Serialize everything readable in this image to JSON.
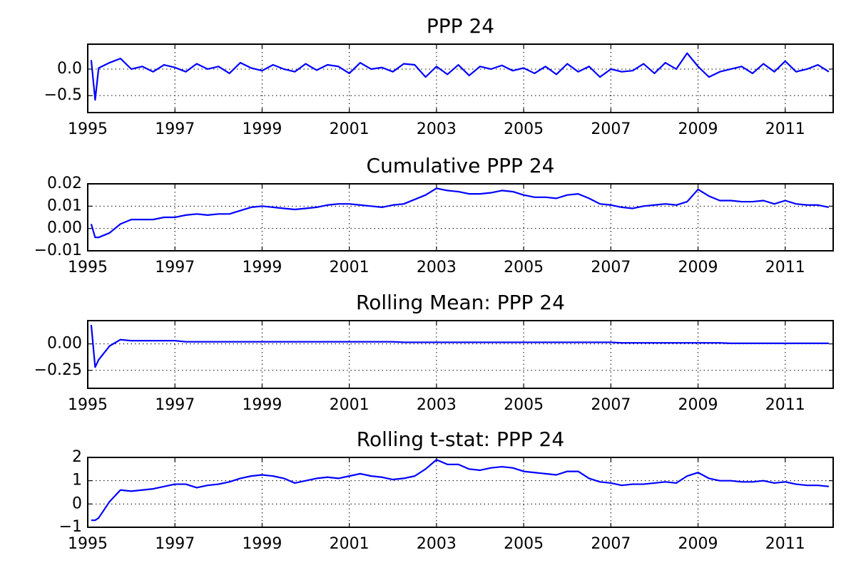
{
  "chart_data": [
    {
      "type": "line",
      "title": "PPP 24",
      "x": [
        1995.08,
        1995.17,
        1995.25,
        1995.5,
        1995.75,
        1996.0,
        1996.25,
        1996.5,
        1996.75,
        1997.0,
        1997.25,
        1997.5,
        1997.75,
        1998.0,
        1998.25,
        1998.5,
        1998.75,
        1999.0,
        1999.25,
        1999.5,
        1999.75,
        2000.0,
        2000.25,
        2000.5,
        2000.75,
        2001.0,
        2001.25,
        2001.5,
        2001.75,
        2002.0,
        2002.25,
        2002.5,
        2002.75,
        2003.0,
        2003.25,
        2003.5,
        2003.75,
        2004.0,
        2004.25,
        2004.5,
        2004.75,
        2005.0,
        2005.25,
        2005.5,
        2005.75,
        2006.0,
        2006.25,
        2006.5,
        2006.75,
        2007.0,
        2007.25,
        2007.5,
        2007.75,
        2008.0,
        2008.25,
        2008.5,
        2008.75,
        2009.0,
        2009.25,
        2009.5,
        2009.75,
        2010.0,
        2010.25,
        2010.5,
        2010.75,
        2011.0,
        2011.25,
        2011.5,
        2011.75,
        2012.0
      ],
      "series": [
        {
          "color": "#0000ff",
          "values": [
            0.17,
            -0.58,
            0.02,
            0.12,
            0.2,
            0.0,
            0.05,
            -0.05,
            0.08,
            0.03,
            -0.05,
            0.1,
            0.0,
            0.05,
            -0.08,
            0.12,
            0.02,
            -0.03,
            0.08,
            0.0,
            -0.05,
            0.1,
            -0.02,
            0.08,
            0.05,
            -0.08,
            0.12,
            0.0,
            0.03,
            -0.05,
            0.1,
            0.08,
            -0.15,
            0.05,
            -0.1,
            0.08,
            -0.12,
            0.05,
            0.0,
            0.07,
            -0.03,
            0.02,
            -0.08,
            0.05,
            -0.1,
            0.1,
            -0.05,
            0.05,
            -0.15,
            0.0,
            -0.05,
            -0.03,
            0.1,
            -0.08,
            0.12,
            0.0,
            0.3,
            0.05,
            -0.15,
            -0.05,
            0.0,
            0.05,
            -0.08,
            0.1,
            -0.05,
            0.15,
            -0.05,
            0.0,
            0.08,
            -0.05
          ]
        }
      ],
      "xlim": [
        1995,
        2012.1
      ],
      "xticks": [
        1995,
        1997,
        1999,
        2001,
        2003,
        2005,
        2007,
        2009,
        2011
      ],
      "ylim": [
        -0.82,
        0.47
      ],
      "yticks": [
        {
          "value": -0.5,
          "label": "−0.5"
        },
        {
          "value": 0,
          "label": "0.0"
        }
      ],
      "grid": true
    },
    {
      "type": "line",
      "title": "Cumulative PPP 24",
      "x": [
        1995.08,
        1995.17,
        1995.25,
        1995.5,
        1995.75,
        1996.0,
        1996.25,
        1996.5,
        1996.75,
        1997.0,
        1997.25,
        1997.5,
        1997.75,
        1998.0,
        1998.25,
        1998.5,
        1998.75,
        1999.0,
        1999.25,
        1999.5,
        1999.75,
        2000.0,
        2000.25,
        2000.5,
        2000.75,
        2001.0,
        2001.25,
        2001.5,
        2001.75,
        2002.0,
        2002.25,
        2002.5,
        2002.75,
        2003.0,
        2003.25,
        2003.5,
        2003.75,
        2004.0,
        2004.25,
        2004.5,
        2004.75,
        2005.0,
        2005.25,
        2005.5,
        2005.75,
        2006.0,
        2006.25,
        2006.5,
        2006.75,
        2007.0,
        2007.25,
        2007.5,
        2007.75,
        2008.0,
        2008.25,
        2008.5,
        2008.75,
        2009.0,
        2009.25,
        2009.5,
        2009.75,
        2010.0,
        2010.25,
        2010.5,
        2010.75,
        2011.0,
        2011.25,
        2011.5,
        2011.75,
        2012.0
      ],
      "series": [
        {
          "color": "#0000ff",
          "values": [
            0.002,
            -0.004,
            -0.004,
            -0.002,
            0.002,
            0.004,
            0.004,
            0.004,
            0.005,
            0.005,
            0.006,
            0.0065,
            0.006,
            0.0065,
            0.0065,
            0.008,
            0.0095,
            0.01,
            0.0095,
            0.009,
            0.0085,
            0.009,
            0.0095,
            0.0105,
            0.011,
            0.011,
            0.0105,
            0.01,
            0.0095,
            0.0105,
            0.011,
            0.013,
            0.015,
            0.018,
            0.017,
            0.0165,
            0.0155,
            0.0155,
            0.016,
            0.017,
            0.0165,
            0.015,
            0.014,
            0.014,
            0.0135,
            0.015,
            0.0155,
            0.0135,
            0.011,
            0.0105,
            0.0095,
            0.009,
            0.01,
            0.0105,
            0.011,
            0.0105,
            0.012,
            0.0175,
            0.0145,
            0.0125,
            0.0125,
            0.012,
            0.012,
            0.0125,
            0.011,
            0.0125,
            0.011,
            0.0105,
            0.0105,
            0.0095
          ]
        }
      ],
      "xlim": [
        1995,
        2012.1
      ],
      "xticks": [
        1995,
        1997,
        1999,
        2001,
        2003,
        2005,
        2007,
        2009,
        2011
      ],
      "ylim": [
        -0.01,
        0.02
      ],
      "yticks": [
        {
          "value": -0.01,
          "label": "−0.01"
        },
        {
          "value": 0,
          "label": "0.00"
        },
        0.01,
        0.02
      ],
      "grid": true
    },
    {
      "type": "line",
      "title": "Rolling Mean: PPP 24",
      "x": [
        1995.08,
        1995.17,
        1995.25,
        1995.5,
        1995.75,
        1996.0,
        1996.25,
        1996.5,
        1996.75,
        1997.0,
        1997.25,
        1997.5,
        1997.75,
        1998.0,
        1998.25,
        1998.5,
        1998.75,
        1999.0,
        1999.25,
        1999.5,
        1999.75,
        2000.0,
        2000.25,
        2000.5,
        2000.75,
        2001.0,
        2001.25,
        2001.5,
        2001.75,
        2002.0,
        2002.25,
        2002.5,
        2002.75,
        2003.0,
        2003.25,
        2003.5,
        2003.75,
        2004.0,
        2004.25,
        2004.5,
        2004.75,
        2005.0,
        2005.25,
        2005.5,
        2005.75,
        2006.0,
        2006.25,
        2006.5,
        2006.75,
        2007.0,
        2007.25,
        2007.5,
        2007.75,
        2008.0,
        2008.25,
        2008.5,
        2008.75,
        2009.0,
        2009.25,
        2009.5,
        2009.75,
        2010.0,
        2010.25,
        2010.5,
        2010.75,
        2011.0,
        2011.25,
        2011.5,
        2011.75,
        2012.0
      ],
      "series": [
        {
          "color": "#0000ff",
          "values": [
            0.18,
            -0.22,
            -0.15,
            -0.02,
            0.04,
            0.03,
            0.03,
            0.03,
            0.03,
            0.03,
            0.02,
            0.02,
            0.02,
            0.02,
            0.02,
            0.02,
            0.02,
            0.02,
            0.02,
            0.02,
            0.02,
            0.02,
            0.02,
            0.02,
            0.02,
            0.02,
            0.02,
            0.02,
            0.02,
            0.02,
            0.015,
            0.015,
            0.015,
            0.015,
            0.015,
            0.015,
            0.015,
            0.015,
            0.015,
            0.015,
            0.015,
            0.015,
            0.015,
            0.015,
            0.015,
            0.015,
            0.015,
            0.015,
            0.015,
            0.015,
            0.01,
            0.01,
            0.01,
            0.01,
            0.01,
            0.01,
            0.01,
            0.01,
            0.01,
            0.01,
            0.005,
            0.005,
            0.005,
            0.005,
            0.005,
            0.005,
            0.005,
            0.005,
            0.005,
            0.005
          ]
        }
      ],
      "xlim": [
        1995,
        2012.1
      ],
      "xticks": [
        1995,
        1997,
        1999,
        2001,
        2003,
        2005,
        2007,
        2009,
        2011
      ],
      "ylim": [
        -0.42,
        0.22
      ],
      "yticks": [
        {
          "value": -0.25,
          "label": "−0.25"
        },
        {
          "value": 0,
          "label": "0.00"
        }
      ],
      "grid": true
    },
    {
      "type": "line",
      "title": "Rolling t-stat: PPP 24",
      "x": [
        1995.08,
        1995.17,
        1995.25,
        1995.5,
        1995.75,
        1996.0,
        1996.25,
        1996.5,
        1996.75,
        1997.0,
        1997.25,
        1997.5,
        1997.75,
        1998.0,
        1998.25,
        1998.5,
        1998.75,
        1999.0,
        1999.25,
        1999.5,
        1999.75,
        2000.0,
        2000.25,
        2000.5,
        2000.75,
        2001.0,
        2001.25,
        2001.5,
        2001.75,
        2002.0,
        2002.25,
        2002.5,
        2002.75,
        2003.0,
        2003.25,
        2003.5,
        2003.75,
        2004.0,
        2004.25,
        2004.5,
        2004.75,
        2005.0,
        2005.25,
        2005.5,
        2005.75,
        2006.0,
        2006.25,
        2006.5,
        2006.75,
        2007.0,
        2007.25,
        2007.5,
        2007.75,
        2008.0,
        2008.25,
        2008.5,
        2008.75,
        2009.0,
        2009.25,
        2009.5,
        2009.75,
        2010.0,
        2010.25,
        2010.5,
        2010.75,
        2011.0,
        2011.25,
        2011.5,
        2011.75,
        2012.0
      ],
      "series": [
        {
          "color": "#0000ff",
          "values": [
            -0.7,
            -0.7,
            -0.6,
            0.1,
            0.6,
            0.55,
            0.6,
            0.65,
            0.75,
            0.85,
            0.85,
            0.7,
            0.8,
            0.85,
            0.95,
            1.1,
            1.2,
            1.25,
            1.2,
            1.1,
            0.9,
            1.0,
            1.1,
            1.15,
            1.1,
            1.2,
            1.3,
            1.2,
            1.15,
            1.05,
            1.1,
            1.2,
            1.5,
            1.9,
            1.7,
            1.7,
            1.5,
            1.45,
            1.55,
            1.6,
            1.55,
            1.4,
            1.35,
            1.3,
            1.25,
            1.4,
            1.4,
            1.1,
            0.95,
            0.9,
            0.8,
            0.85,
            0.85,
            0.9,
            0.95,
            0.9,
            1.2,
            1.35,
            1.1,
            1.0,
            1.0,
            0.95,
            0.95,
            1.0,
            0.9,
            0.95,
            0.85,
            0.8,
            0.8,
            0.75
          ]
        }
      ],
      "xlim": [
        1995,
        2012.1
      ],
      "xticks": [
        1995,
        1997,
        1999,
        2001,
        2003,
        2005,
        2007,
        2009,
        2011
      ],
      "ylim": [
        -1,
        2
      ],
      "yticks": [
        {
          "value": -1,
          "label": "−1"
        },
        0,
        1,
        2
      ],
      "grid": true
    }
  ]
}
